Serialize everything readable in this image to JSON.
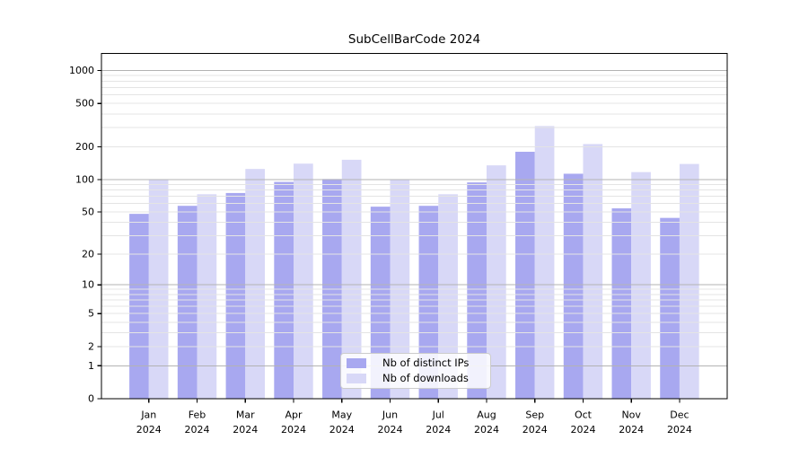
{
  "title": "SubCellBarCode 2024",
  "legend": {
    "items": [
      {
        "label": "Nb of distinct IPs",
        "color": "#a8a8f0"
      },
      {
        "label": "Nb of downloads",
        "color": "#d8d8f7"
      }
    ]
  },
  "chart_data": {
    "type": "bar",
    "title": "SubCellBarCode 2024",
    "categories": [
      "Jan 2024",
      "Feb 2024",
      "Mar 2024",
      "Apr 2024",
      "May 2024",
      "Jun 2024",
      "Jul 2024",
      "Aug 2024",
      "Sep 2024",
      "Oct 2024",
      "Nov 2024",
      "Dec 2024"
    ],
    "x_tick_line1": [
      "Jan",
      "Feb",
      "Mar",
      "Apr",
      "May",
      "Jun",
      "Jul",
      "Aug",
      "Sep",
      "Oct",
      "Nov",
      "Dec"
    ],
    "x_tick_line2": [
      "2024",
      "2024",
      "2024",
      "2024",
      "2024",
      "2024",
      "2024",
      "2024",
      "2024",
      "2024",
      "2024",
      "2024"
    ],
    "series": [
      {
        "name": "Nb of distinct IPs",
        "color": "#a8a8f0",
        "values": [
          48,
          57,
          75,
          95,
          101,
          56,
          57,
          94,
          180,
          113,
          54,
          44
        ]
      },
      {
        "name": "Nb of downloads",
        "color": "#d8d8f7",
        "values": [
          100,
          73,
          125,
          140,
          152,
          100,
          73,
          135,
          310,
          212,
          117,
          139
        ]
      }
    ],
    "y_ticks": [
      0,
      1,
      2,
      5,
      10,
      20,
      50,
      100,
      200,
      500,
      1000
    ],
    "y_major_gridlines": [
      1,
      10,
      100,
      1000
    ],
    "y_scale": "log10(1+v)",
    "ylim": [
      0,
      1400
    ],
    "grid": true,
    "legend_position": "lower center",
    "xlabel": "",
    "ylabel": ""
  },
  "colors": {
    "background": "#ffffff",
    "axis": "#000000",
    "major_grid": "#b3b3b3",
    "minor_grid": "#e4e4e4",
    "tick_text": "#000000",
    "legend_border": "#cccccc"
  }
}
